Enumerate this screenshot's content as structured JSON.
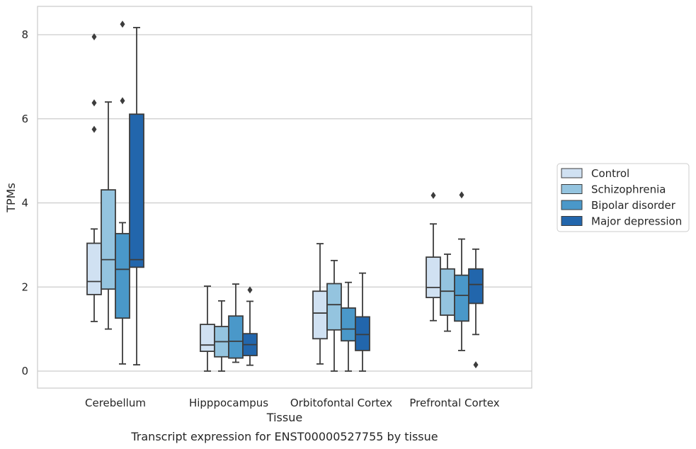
{
  "chart_data": {
    "type": "box",
    "xlabel": "Tissue",
    "ylabel": "TPMs",
    "caption": "Transcript expression for ENST00000527755 by tissue",
    "ylim": [
      -0.4,
      8.7
    ],
    "yticks": [
      0,
      2,
      4,
      6,
      8
    ],
    "grid": true,
    "legend_position": "right",
    "categories": [
      "Cerebellum",
      "Hipppocampus",
      "Orbitofontal Cortex",
      "Prefrontal Cortex"
    ],
    "series": [
      {
        "name": "Control",
        "color": "#d0e1f2",
        "boxes": [
          {
            "whislo": 1.18,
            "q1": 1.82,
            "med": 2.13,
            "q3": 3.04,
            "whishi": 3.38,
            "fliers": [
              5.75,
              6.38,
              7.95
            ]
          },
          {
            "whislo": 0.0,
            "q1": 0.47,
            "med": 0.62,
            "q3": 1.11,
            "whishi": 2.02,
            "fliers": []
          },
          {
            "whislo": 0.17,
            "q1": 0.77,
            "med": 1.38,
            "q3": 1.9,
            "whishi": 3.03,
            "fliers": []
          },
          {
            "whislo": 1.2,
            "q1": 1.75,
            "med": 1.99,
            "q3": 2.71,
            "whishi": 3.5,
            "fliers": [
              4.18
            ]
          }
        ]
      },
      {
        "name": "Schizophrenia",
        "color": "#94c4df",
        "boxes": [
          {
            "whislo": 1.0,
            "q1": 1.95,
            "med": 2.65,
            "q3": 4.31,
            "whishi": 6.4,
            "fliers": []
          },
          {
            "whislo": 0.0,
            "q1": 0.34,
            "med": 0.7,
            "q3": 1.06,
            "whishi": 1.67,
            "fliers": []
          },
          {
            "whislo": 0.0,
            "q1": 0.98,
            "med": 1.58,
            "q3": 2.08,
            "whishi": 2.63,
            "fliers": []
          },
          {
            "whislo": 0.95,
            "q1": 1.33,
            "med": 1.9,
            "q3": 2.43,
            "whishi": 2.78,
            "fliers": []
          }
        ]
      },
      {
        "name": "Bipolar disorder",
        "color": "#4a98c9",
        "boxes": [
          {
            "whislo": 0.17,
            "q1": 1.26,
            "med": 2.42,
            "q3": 3.27,
            "whishi": 3.53,
            "fliers": [
              6.43,
              8.25
            ]
          },
          {
            "whislo": 0.21,
            "q1": 0.31,
            "med": 0.71,
            "q3": 1.31,
            "whishi": 2.07,
            "fliers": []
          },
          {
            "whislo": 0.0,
            "q1": 0.72,
            "med": 1.0,
            "q3": 1.5,
            "whishi": 2.11,
            "fliers": []
          },
          {
            "whislo": 0.49,
            "q1": 1.19,
            "med": 1.8,
            "q3": 2.28,
            "whishi": 3.14,
            "fliers": [
              4.19
            ]
          }
        ]
      },
      {
        "name": "Major depression",
        "color": "#2266ac",
        "boxes": [
          {
            "whislo": 0.15,
            "q1": 2.47,
            "med": 2.65,
            "q3": 6.11,
            "whishi": 8.17,
            "fliers": []
          },
          {
            "whislo": 0.14,
            "q1": 0.37,
            "med": 0.63,
            "q3": 0.89,
            "whishi": 1.66,
            "fliers": [
              1.93
            ]
          },
          {
            "whislo": 0.0,
            "q1": 0.49,
            "med": 0.87,
            "q3": 1.29,
            "whishi": 2.33,
            "fliers": []
          },
          {
            "whislo": 0.87,
            "q1": 1.61,
            "med": 2.06,
            "q3": 2.43,
            "whishi": 2.9,
            "fliers": [
              0.15
            ]
          }
        ]
      }
    ]
  }
}
